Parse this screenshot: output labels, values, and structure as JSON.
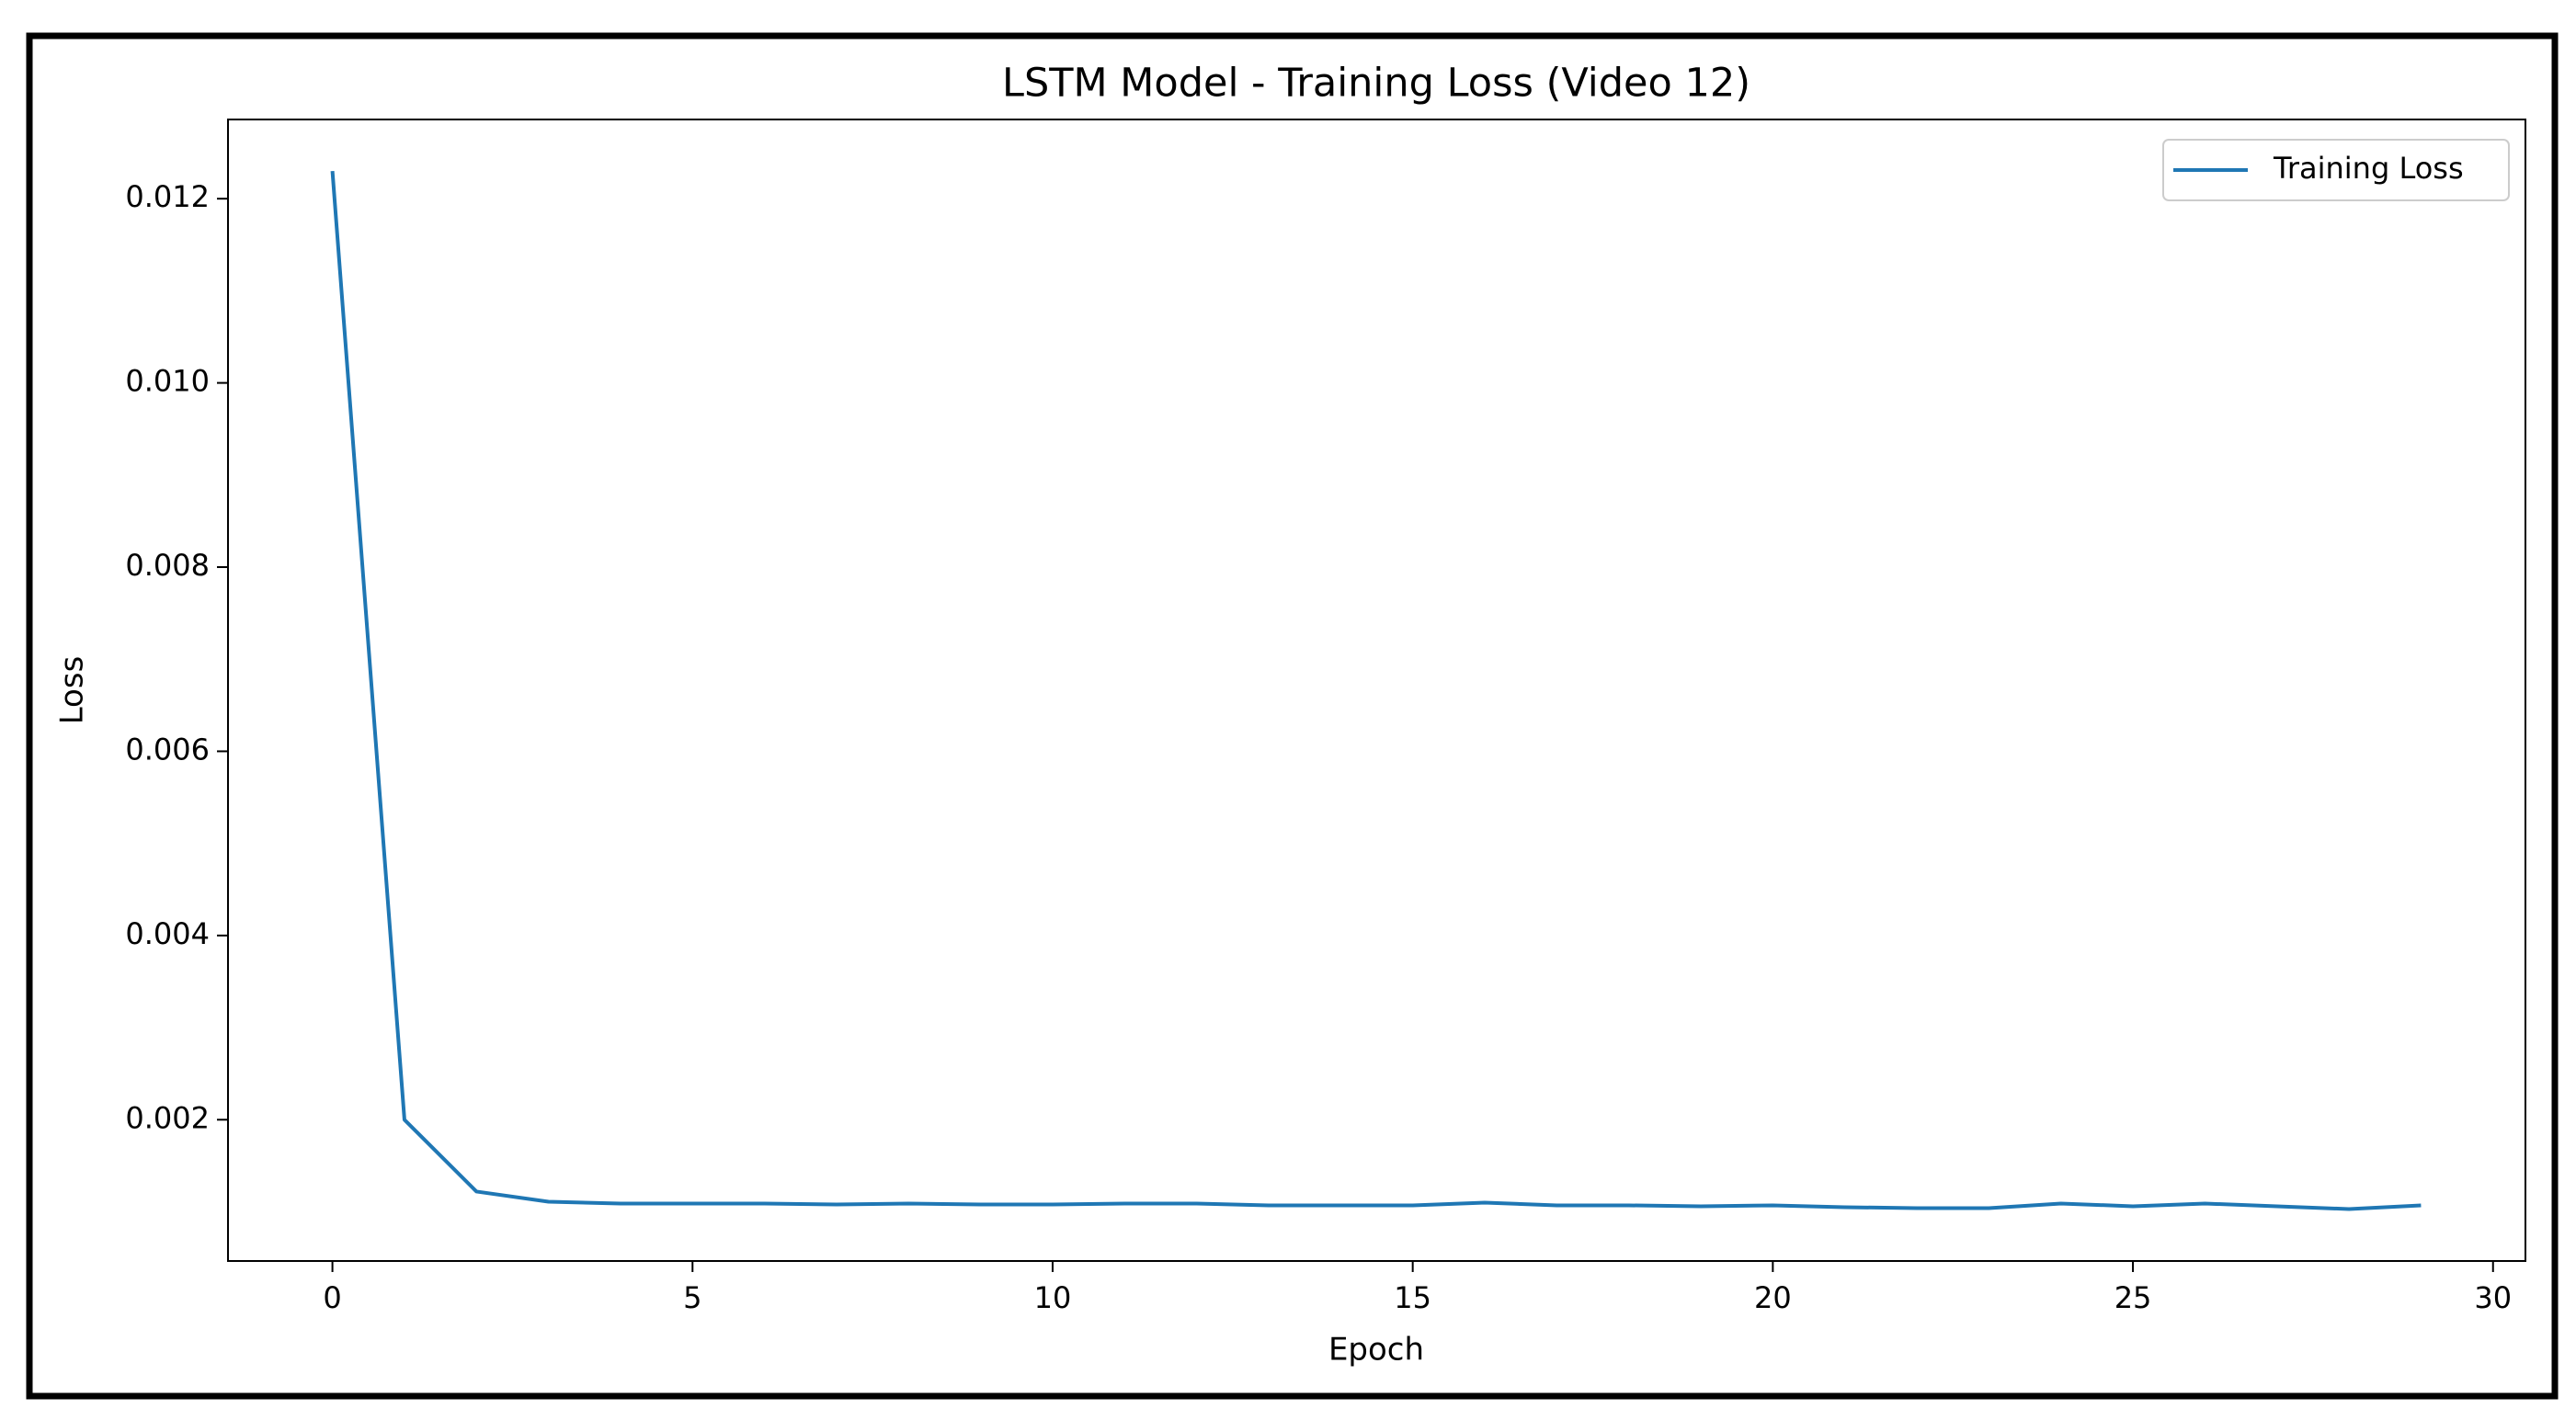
{
  "chart_data": {
    "type": "line",
    "title": "LSTM Model - Training Loss (Video 12)",
    "x_label": "Epoch",
    "y_label": "Loss",
    "x": [
      0,
      1,
      2,
      3,
      4,
      5,
      6,
      7,
      8,
      9,
      10,
      11,
      12,
      13,
      14,
      15,
      16,
      17,
      18,
      19,
      20,
      21,
      22,
      23,
      24,
      25,
      26,
      27,
      28,
      29
    ],
    "series": [
      {
        "name": "Training Loss",
        "color": "#1f77b4",
        "values": [
          0.0123,
          0.002,
          0.00122,
          0.00111,
          0.00109,
          0.00109,
          0.00109,
          0.00108,
          0.00109,
          0.00108,
          0.00108,
          0.00109,
          0.00109,
          0.00107,
          0.00107,
          0.00107,
          0.0011,
          0.00107,
          0.00107,
          0.00106,
          0.00107,
          0.00105,
          0.00104,
          0.00104,
          0.00109,
          0.00106,
          0.00109,
          0.00106,
          0.00103,
          0.00107
        ]
      }
    ],
    "xlim": [
      -1.45,
      30.45
    ],
    "xticks": [
      0,
      5,
      10,
      15,
      20,
      25,
      30
    ],
    "ylim": [
      0.000466,
      0.01286
    ],
    "yticks": [
      0.002,
      0.004,
      0.006,
      0.008,
      {
        "value": 0.01,
        "label": "0.010"
      },
      0.012
    ],
    "legend": "upper right",
    "grid": false
  }
}
